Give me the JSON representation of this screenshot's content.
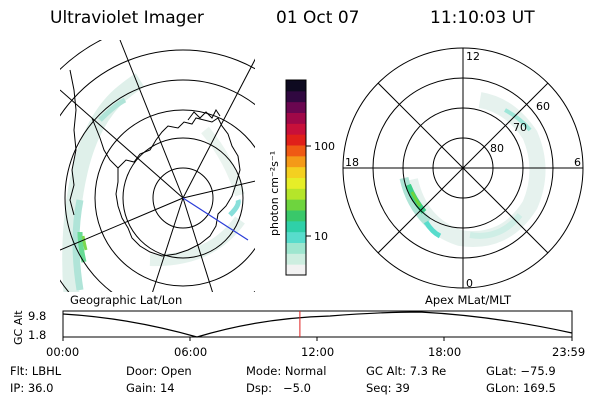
{
  "header": {
    "instrument": "Ultraviolet Imager",
    "date": "01 Oct 07",
    "time": "11:10:03 UT"
  },
  "colorbar": {
    "label": "photon cm⁻²s⁻¹",
    "ticks": [
      "100",
      "10"
    ],
    "colors": [
      "#f2f2f2",
      "#cdeee0",
      "#9ee6cf",
      "#58dccc",
      "#2fd0a8",
      "#39c86a",
      "#6ed43e",
      "#b5e52a",
      "#e6ee28",
      "#f4d020",
      "#f49a18",
      "#ef5a14",
      "#e0201a",
      "#c8103a",
      "#a00848",
      "#6a0650",
      "#300840",
      "#0e0a20"
    ]
  },
  "geographic_map": {
    "label": "Geographic Lat/Lon"
  },
  "polar_map": {
    "label": "Apex MLat/MLT",
    "mlt_labels": {
      "top": "12",
      "left": "18",
      "right": "6",
      "bottom": "0"
    },
    "mlat_labels": [
      "60",
      "70",
      "80"
    ]
  },
  "timeline": {
    "ylabel": "GC Alt",
    "y_ticks": [
      "9.8",
      "1.8"
    ],
    "x_ticks": [
      "00:00",
      "06:00",
      "12:00",
      "18:00",
      "23:59"
    ],
    "current_time_fraction": 0.4654
  },
  "footer": {
    "rows": [
      [
        "Flt: LBHL",
        "Door: Open",
        "Mode: Normal",
        "GC Alt: 7.3 Re",
        "GLat: −75.9"
      ],
      [
        "IP: 36.0",
        "Gain: 14",
        "Dsp:   −5.0",
        "Seq: 39",
        "GLon: 169.5"
      ]
    ]
  }
}
